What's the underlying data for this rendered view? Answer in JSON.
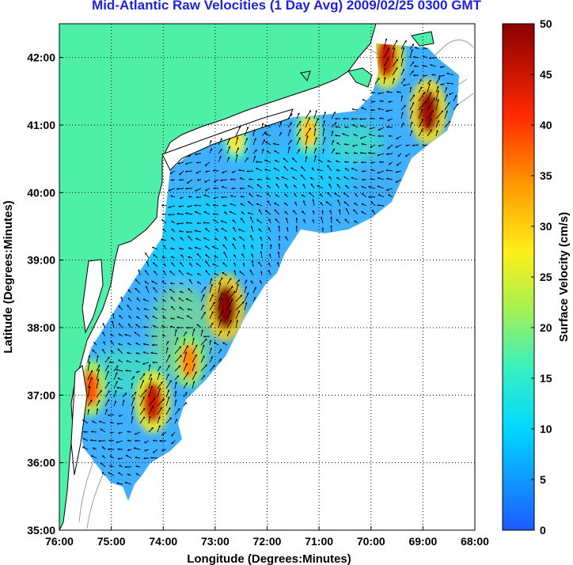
{
  "title": "Mid-Atlantic Raw Velocities (1 Day Avg) 2009/02/25 0300 GMT",
  "chart_data": {
    "type": "heatmap",
    "title": "Mid-Atlantic Raw Velocities (1 Day Avg) 2009/02/25 0300 GMT",
    "xlabel": "Longitude (Degrees:Minutes)",
    "ylabel": "Latitude (Degrees:Minutes)",
    "x_ticks": [
      "76:00",
      "75:00",
      "74:00",
      "73:00",
      "72:00",
      "71:00",
      "70:00",
      "69:00",
      "68:00"
    ],
    "y_ticks": [
      "35:00",
      "36:00",
      "37:00",
      "38:00",
      "39:00",
      "40:00",
      "41:00",
      "42:00"
    ],
    "xlim": [
      -76,
      -68
    ],
    "ylim": [
      35,
      42.5
    ],
    "grid": true,
    "colorbar": {
      "label": "Surface Velocity (cm/s)",
      "range": [
        0,
        50
      ],
      "ticks": [
        "0",
        "5",
        "10",
        "15",
        "20",
        "25",
        "30",
        "35",
        "40",
        "45",
        "50"
      ],
      "colormap": "jet"
    },
    "colors": {
      "land": "#4ef0a8",
      "coast": "#000000",
      "bathymetry": "#9a9a9a",
      "grid": "#000000"
    },
    "hotspots": [
      {
        "lon": -72.8,
        "lat": 38.3,
        "speed": 50
      },
      {
        "lon": -68.9,
        "lat": 41.2,
        "speed": 48
      },
      {
        "lon": -69.7,
        "lat": 42.0,
        "speed": 45
      },
      {
        "lon": -74.2,
        "lat": 36.9,
        "speed": 45
      },
      {
        "lon": -75.4,
        "lat": 37.1,
        "speed": 38
      },
      {
        "lon": -73.5,
        "lat": 37.5,
        "speed": 35
      },
      {
        "lon": -71.2,
        "lat": 40.9,
        "speed": 30
      },
      {
        "lon": -72.6,
        "lat": 40.8,
        "speed": 28
      }
    ],
    "background_speed": 10
  }
}
